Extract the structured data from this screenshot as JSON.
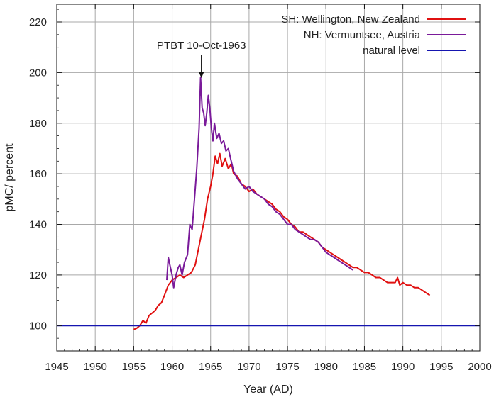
{
  "chart_data": {
    "type": "line",
    "title": "",
    "xlabel": "Year (AD)",
    "ylabel": "pMC/ percent",
    "xlim": [
      1945,
      2000
    ],
    "ylim": [
      90,
      227
    ],
    "x_ticks": [
      1945,
      1950,
      1955,
      1960,
      1965,
      1970,
      1975,
      1980,
      1985,
      1990,
      1995,
      2000
    ],
    "y_ticks": [
      100,
      120,
      140,
      160,
      180,
      200,
      220
    ],
    "grid": true,
    "legend_position": "top-right",
    "annotation": {
      "text": "PTBT 10-Oct-1963",
      "x": 1963.8,
      "y": 198
    },
    "series": [
      {
        "name": "SH: Wellington, New Zealand",
        "color": "#e01010",
        "x": [
          1955.0,
          1955.4,
          1955.8,
          1956.2,
          1956.6,
          1957.0,
          1957.4,
          1957.8,
          1958.2,
          1958.6,
          1959.0,
          1959.5,
          1960.0,
          1960.5,
          1961.0,
          1961.5,
          1962.0,
          1962.5,
          1963.0,
          1963.4,
          1963.8,
          1964.2,
          1964.6,
          1965.0,
          1965.3,
          1965.6,
          1965.9,
          1966.2,
          1966.5,
          1966.9,
          1967.3,
          1967.7,
          1968.0,
          1968.5,
          1969.0,
          1969.5,
          1970.0,
          1970.5,
          1971.0,
          1971.5,
          1972.0,
          1972.5,
          1973.0,
          1973.5,
          1974.0,
          1974.5,
          1975.0,
          1975.5,
          1976.0,
          1976.5,
          1977.0,
          1977.5,
          1978.0,
          1978.5,
          1979.0,
          1979.5,
          1980.0,
          1980.5,
          1981.0,
          1981.5,
          1982.0,
          1982.5,
          1983.0,
          1983.5,
          1984.0,
          1984.5,
          1985.0,
          1985.5,
          1986.0,
          1986.5,
          1987.0,
          1987.5,
          1988.0,
          1988.5,
          1989.0,
          1989.3,
          1989.6,
          1990.0,
          1990.5,
          1991.0,
          1991.5,
          1992.0,
          1992.5,
          1993.0,
          1993.5
        ],
        "values": [
          98.5,
          99,
          100,
          102,
          101,
          104,
          105,
          106,
          108,
          109,
          112,
          116,
          118,
          119,
          120,
          119,
          120,
          121,
          124,
          130,
          136,
          142,
          150,
          155,
          160,
          167,
          164,
          168,
          163,
          166,
          162,
          164,
          160,
          159,
          156,
          155,
          153,
          154,
          152,
          151,
          150,
          149,
          148,
          146,
          145,
          143,
          142,
          140,
          139,
          137,
          137,
          136,
          135,
          134,
          133,
          131,
          130,
          129,
          128,
          127,
          126,
          125,
          124,
          123,
          123,
          122,
          121,
          121,
          120,
          119,
          119,
          118,
          117,
          117,
          117,
          119,
          116,
          117,
          116,
          116,
          115,
          115,
          114,
          113,
          112
        ]
      },
      {
        "name": "NH: Vermuntsee, Austria",
        "color": "#7a1a9a",
        "x": [
          1959.3,
          1959.5,
          1959.7,
          1960.0,
          1960.2,
          1960.5,
          1960.8,
          1961.0,
          1961.3,
          1961.6,
          1962.0,
          1962.3,
          1962.6,
          1962.9,
          1963.2,
          1963.5,
          1963.7,
          1963.9,
          1964.1,
          1964.3,
          1964.5,
          1964.7,
          1964.9,
          1965.1,
          1965.3,
          1965.5,
          1965.8,
          1966.1,
          1966.4,
          1966.7,
          1967.0,
          1967.3,
          1967.6,
          1968.0,
          1968.5,
          1969.0,
          1969.5,
          1970.0,
          1970.5,
          1971.0,
          1971.5,
          1972.0,
          1972.5,
          1973.0,
          1973.5,
          1974.0,
          1974.5,
          1975.0,
          1975.5,
          1976.0,
          1976.5,
          1977.0,
          1977.5,
          1978.0,
          1978.5,
          1979.0,
          1979.5,
          1980.0,
          1980.5,
          1981.0,
          1981.5,
          1982.0,
          1982.5,
          1983.0,
          1983.5
        ],
        "values": [
          118,
          127,
          124,
          120,
          115,
          120,
          123,
          124,
          120,
          125,
          128,
          140,
          138,
          150,
          162,
          178,
          198,
          186,
          184,
          179,
          184,
          191,
          186,
          178,
          173,
          180,
          174,
          176,
          172,
          173,
          169,
          170,
          166,
          161,
          158,
          156,
          154,
          155,
          153,
          152,
          151,
          150,
          148,
          147,
          145,
          144,
          142,
          140,
          140,
          138,
          137,
          136,
          135,
          134,
          134,
          133,
          131,
          129,
          128,
          127,
          126,
          125,
          124,
          123,
          122
        ]
      },
      {
        "name": "natural level",
        "color": "#1515b0",
        "x": [
          1945,
          2000
        ],
        "values": [
          100,
          100
        ]
      }
    ]
  }
}
